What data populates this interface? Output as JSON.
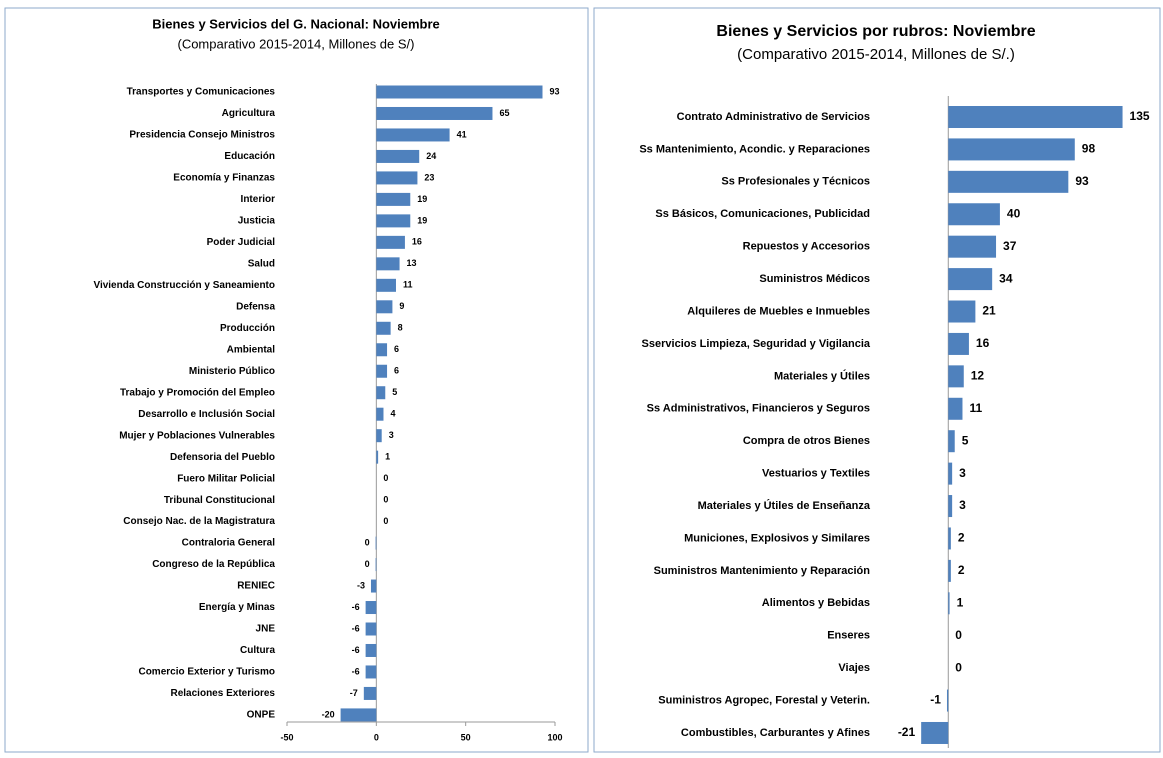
{
  "chart_data": [
    {
      "type": "bar",
      "orientation": "horizontal",
      "title": "Bienes y Servicios del G. Nacional: Noviembre",
      "subtitle": "(Comparativo 2015-2014, Millones de S/)",
      "categories": [
        "Transportes y Comunicaciones",
        "Agricultura",
        "Presidencia Consejo Ministros",
        "Educación",
        "Economía y Finanzas",
        "Interior",
        "Justicia",
        "Poder Judicial",
        "Salud",
        "Vivienda Construcción y Saneamiento",
        "Defensa",
        "Producción",
        "Ambiental",
        "Ministerio Público",
        "Trabajo y Promoción del Empleo",
        "Desarrollo e Inclusión Social",
        "Mujer y Poblaciones Vulnerables",
        "Defensoria del Pueblo",
        "Fuero Militar Policial",
        "Tribunal Constitucional",
        "Consejo Nac. de la Magistratura",
        "Contraloria General",
        "Congreso de la República",
        "RENIEC",
        "Energía y Minas",
        "JNE",
        "Cultura",
        "Comercio Exterior y Turismo",
        "Relaciones Exteriores",
        "ONPE"
      ],
      "values": [
        93,
        65,
        41,
        24,
        23,
        19,
        19,
        16,
        13,
        11,
        9,
        8,
        6,
        6,
        5,
        4,
        3,
        1,
        0,
        0,
        0,
        -0.4,
        -0.4,
        -3,
        -6,
        -6,
        -6,
        -6,
        -7,
        -20
      ],
      "value_labels": [
        "93",
        "65",
        "41",
        "24",
        "23",
        "19",
        "19",
        "16",
        "13",
        "11",
        "9",
        "8",
        "6",
        "6",
        "5",
        "4",
        "3",
        "1",
        "0",
        "0",
        "0",
        "0",
        "0",
        "-3",
        "-6",
        "-6",
        "-6",
        "-6",
        "-7",
        "-20"
      ],
      "color": "#4f81bd",
      "xlim": [
        -50,
        100
      ],
      "xticks": [
        -50,
        0,
        50,
        100
      ]
    },
    {
      "type": "bar",
      "orientation": "horizontal",
      "title": "Bienes y Servicios por rubros: Noviembre",
      "subtitle": "(Comparativo 2015-2014, Millones de S/.)",
      "categories": [
        "Contrato Administrativo de Servicios",
        "Ss Mantenimiento, Acondic. y  Reparaciones",
        "Ss Profesionales y Técnicos",
        "Ss Básicos, Comunicaciones, Publicidad",
        "Repuestos y Accesorios",
        "Suministros Médicos",
        "Alquileres de Muebles e Inmuebles",
        "Sservicios Limpieza, Seguridad y Vigilancia",
        "Materiales y  Útiles",
        "Ss Administrativos, Financieros y Seguros",
        "Compra de otros Bienes",
        "Vestuarios y Textiles",
        "Materiales y Útiles de Enseñanza",
        "Municiones,  Explosivos y Similares",
        "Suministros Mantenimiento y Reparación",
        "Alimentos y Bebidas",
        "Enseres",
        "Viajes",
        "Suministros Agropec, Forestal y Veterin.",
        "Combustibles, Carburantes y Afines"
      ],
      "values": [
        135,
        98,
        93,
        40,
        37,
        34,
        21,
        16,
        12,
        11,
        5,
        3,
        3,
        2,
        2,
        1,
        0,
        0,
        -1,
        -21
      ],
      "color": "#4f81bd",
      "xlim": [
        -25,
        140
      ]
    }
  ]
}
